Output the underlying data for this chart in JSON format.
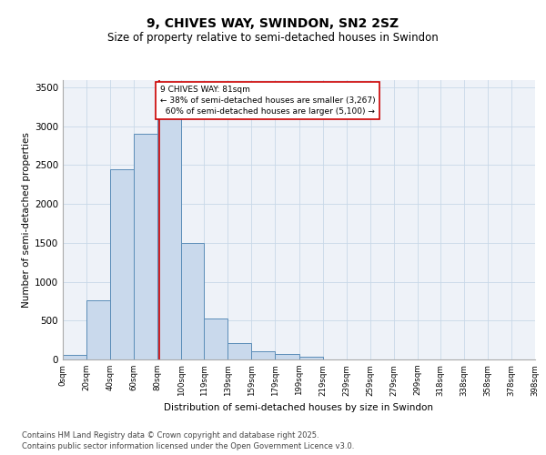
{
  "title": "9, CHIVES WAY, SWINDON, SN2 2SZ",
  "subtitle": "Size of property relative to semi-detached houses in Swindon",
  "xlabel": "Distribution of semi-detached houses by size in Swindon",
  "ylabel": "Number of semi-detached properties",
  "property_label": "9 CHIVES WAY: 81sqm",
  "pct_smaller": 38,
  "pct_larger": 60,
  "n_smaller": 3267,
  "n_larger": 5100,
  "bin_labels": [
    "0sqm",
    "20sqm",
    "40sqm",
    "60sqm",
    "80sqm",
    "100sqm",
    "119sqm",
    "139sqm",
    "159sqm",
    "179sqm",
    "199sqm",
    "219sqm",
    "239sqm",
    "259sqm",
    "279sqm",
    "299sqm",
    "318sqm",
    "338sqm",
    "358sqm",
    "378sqm",
    "398sqm"
  ],
  "bin_edges": [
    0,
    20,
    40,
    60,
    80,
    100,
    119,
    139,
    159,
    179,
    199,
    219,
    239,
    259,
    279,
    299,
    318,
    338,
    358,
    378,
    398
  ],
  "bar_heights": [
    60,
    760,
    2450,
    2900,
    3300,
    1500,
    530,
    210,
    110,
    65,
    30,
    0,
    0,
    0,
    0,
    0,
    0,
    0,
    0,
    0
  ],
  "bar_color": "#c9d9ec",
  "bar_edge_color": "#5b8db8",
  "vline_color": "#cc0000",
  "vline_x": 81,
  "annotation_box_color": "#cc0000",
  "grid_color": "#c8d8e8",
  "background_color": "#eef2f8",
  "footer_text": "Contains HM Land Registry data © Crown copyright and database right 2025.\nContains public sector information licensed under the Open Government Licence v3.0.",
  "ylim": [
    0,
    3600
  ],
  "yticks": [
    0,
    500,
    1000,
    1500,
    2000,
    2500,
    3000,
    3500
  ],
  "figwidth": 6.0,
  "figheight": 5.0,
  "dpi": 100
}
